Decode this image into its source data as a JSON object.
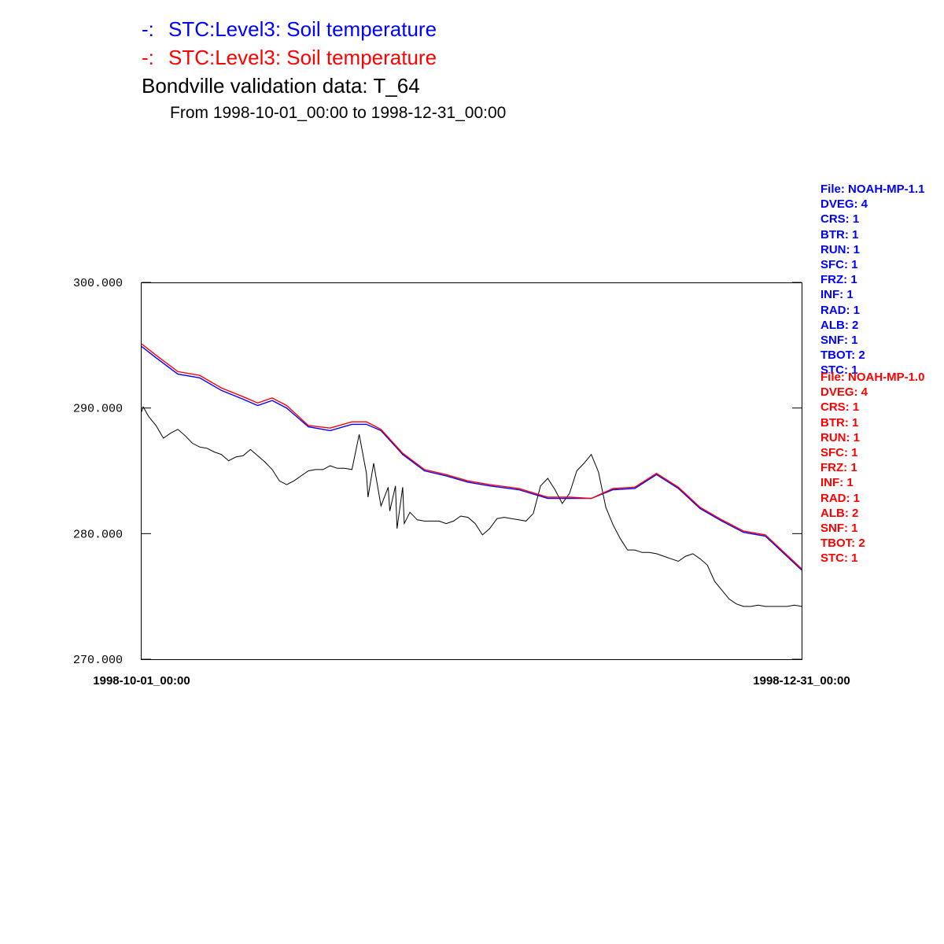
{
  "titles": {
    "series1_prefix": "-:",
    "series1": "STC:Level3: Soil temperature",
    "series2_prefix": "-:",
    "series2": "STC:Level3: Soil temperature",
    "validation": "Bondville validation data:  T_64",
    "range": "From 1998-10-01_00:00 to 1998-12-31_00:00"
  },
  "legends": {
    "blue": [
      "File: NOAH-MP-1.1",
      "DVEG: 4",
      "CRS: 1",
      "BTR: 1",
      "RUN: 1",
      "SFC: 1",
      "FRZ: 1",
      "INF: 1",
      "RAD: 1",
      "ALB: 2",
      "SNF: 1",
      "TBOT: 2",
      "STC: 1"
    ],
    "red": [
      "File: NOAH-MP-1.0",
      "DVEG: 4",
      "CRS: 1",
      "BTR: 1",
      "RUN: 1",
      "SFC: 1",
      "FRZ: 1",
      "INF: 1",
      "RAD: 1",
      "ALB: 2",
      "SNF: 1",
      "TBOT: 2",
      "STC: 1"
    ]
  },
  "colors": {
    "series1": "#0000ff",
    "series2": "#ff0000",
    "observed": "#000000"
  },
  "chart_data": {
    "type": "line",
    "ylim": [
      270,
      300
    ],
    "yticks": [
      "300.000",
      "290.000",
      "280.000",
      "270.000"
    ],
    "xticks": [
      "1998-10-01_00:00",
      "1998-12-31_00:00"
    ],
    "x_start": "1998-10-01_00:00",
    "x_end": "1998-12-31_00:00",
    "series": [
      {
        "name": "STC:Level3: Soil temperature (NOAH-MP-1.1)",
        "color": "#0000ff",
        "x": [
          "1998-10-01",
          "1998-10-03",
          "1998-10-06",
          "1998-10-09",
          "1998-10-12",
          "1998-10-15",
          "1998-10-17",
          "1998-10-19",
          "1998-10-21",
          "1998-10-24",
          "1998-10-27",
          "1998-10-30",
          "1998-11-01",
          "1998-11-03",
          "1998-11-06",
          "1998-11-09",
          "1998-11-12",
          "1998-11-15",
          "1998-11-18",
          "1998-11-22",
          "1998-11-26",
          "1998-11-29",
          "1998-12-02",
          "1998-12-05",
          "1998-12-08",
          "1998-12-11",
          "1998-12-14",
          "1998-12-17",
          "1998-12-20",
          "1998-12-23",
          "1998-12-26",
          "1998-12-31"
        ],
        "y": [
          294.9,
          294.0,
          292.7,
          292.4,
          291.4,
          290.7,
          290.2,
          290.6,
          290.0,
          288.5,
          288.2,
          288.7,
          288.7,
          288.2,
          286.3,
          285.0,
          284.6,
          284.1,
          283.8,
          283.5,
          282.8,
          282.8,
          282.8,
          283.5,
          283.6,
          284.7,
          283.6,
          282.0,
          281.0,
          280.1,
          279.8,
          277.1
        ]
      },
      {
        "name": "STC:Level3: Soil temperature (NOAH-MP-1.0)",
        "color": "#ff0000",
        "x": [
          "1998-10-01",
          "1998-10-03",
          "1998-10-06",
          "1998-10-09",
          "1998-10-12",
          "1998-10-15",
          "1998-10-17",
          "1998-10-19",
          "1998-10-21",
          "1998-10-24",
          "1998-10-27",
          "1998-10-30",
          "1998-11-01",
          "1998-11-03",
          "1998-11-06",
          "1998-11-09",
          "1998-11-12",
          "1998-11-15",
          "1998-11-18",
          "1998-11-22",
          "1998-11-26",
          "1998-11-29",
          "1998-12-02",
          "1998-12-05",
          "1998-12-08",
          "1998-12-11",
          "1998-12-14",
          "1998-12-17",
          "1998-12-20",
          "1998-12-23",
          "1998-12-26",
          "1998-12-31"
        ],
        "y": [
          295.1,
          294.2,
          292.9,
          292.6,
          291.6,
          290.9,
          290.4,
          290.8,
          290.2,
          288.6,
          288.4,
          288.9,
          288.9,
          288.3,
          286.4,
          285.1,
          284.7,
          284.2,
          283.9,
          283.6,
          282.9,
          282.9,
          282.8,
          283.6,
          283.7,
          284.8,
          283.7,
          282.1,
          281.1,
          280.2,
          279.9,
          277.2
        ]
      },
      {
        "name": "Bondville validation data: T_64",
        "color": "#000000",
        "x": [
          "1998-10-01",
          "1998-10-01",
          "1998-10-02",
          "1998-10-03",
          "1998-10-04",
          "1998-10-05",
          "1998-10-06",
          "1998-10-07",
          "1998-10-08",
          "1998-10-09",
          "1998-10-10",
          "1998-10-11",
          "1998-10-12",
          "1998-10-13",
          "1998-10-14",
          "1998-10-15",
          "1998-10-16",
          "1998-10-17",
          "1998-10-18",
          "1998-10-19",
          "1998-10-20",
          "1998-10-21",
          "1998-10-22",
          "1998-10-23",
          "1998-10-24",
          "1998-10-25",
          "1998-10-26",
          "1998-10-27",
          "1998-10-28",
          "1998-10-29",
          "1998-10-30",
          "1998-10-31",
          "1998-11-01",
          "1998-11-01",
          "1998-11-02",
          "1998-11-03",
          "1998-11-04",
          "1998-11-04",
          "1998-11-05",
          "1998-11-05",
          "1998-11-06",
          "1998-11-06",
          "1998-11-07",
          "1998-11-08",
          "1998-11-09",
          "1998-11-10",
          "1998-11-11",
          "1998-11-12",
          "1998-11-13",
          "1998-11-14",
          "1998-11-15",
          "1998-11-16",
          "1998-11-17",
          "1998-11-18",
          "1998-11-19",
          "1998-11-20",
          "1998-11-21",
          "1998-11-22",
          "1998-11-23",
          "1998-11-24",
          "1998-11-25",
          "1998-11-26",
          "1998-11-27",
          "1998-11-28",
          "1998-11-29",
          "1998-11-30",
          "1998-12-01",
          "1998-12-02",
          "1998-12-03",
          "1998-12-04",
          "1998-12-05",
          "1998-12-06",
          "1998-12-07",
          "1998-12-08",
          "1998-12-09",
          "1998-12-10",
          "1998-12-11",
          "1998-12-12",
          "1998-12-13",
          "1998-12-14",
          "1998-12-15",
          "1998-12-16",
          "1998-12-17",
          "1998-12-18",
          "1998-12-19",
          "1998-12-20",
          "1998-12-21",
          "1998-12-22",
          "1998-12-23",
          "1998-12-24",
          "1998-12-25",
          "1998-12-26",
          "1998-12-27",
          "1998-12-28",
          "1998-12-29",
          "1998-12-30",
          "1998-12-31"
        ],
        "y": [
          289.7,
          290.1,
          289.3,
          288.6,
          287.6,
          288.0,
          288.3,
          287.8,
          287.2,
          286.9,
          286.8,
          286.5,
          286.3,
          285.8,
          286.1,
          286.2,
          286.7,
          286.2,
          285.7,
          285.1,
          284.2,
          283.9,
          284.2,
          284.6,
          285.0,
          285.1,
          285.1,
          285.4,
          285.2,
          285.2,
          285.1,
          287.9,
          284.8,
          282.9,
          285.6,
          282.2,
          283.7,
          281.8,
          283.8,
          280.4,
          283.7,
          280.8,
          281.7,
          281.1,
          281.0,
          281.0,
          281.0,
          280.8,
          281.0,
          281.4,
          281.3,
          280.8,
          279.9,
          280.4,
          281.2,
          281.3,
          281.2,
          281.1,
          281.0,
          281.6,
          283.8,
          284.4,
          283.5,
          282.4,
          283.2,
          285.0,
          285.6,
          286.3,
          284.9,
          282.1,
          280.7,
          279.6,
          278.7,
          278.7,
          278.5,
          278.5,
          278.4,
          278.2,
          278.0,
          277.8,
          278.2,
          278.4,
          278.0,
          277.5,
          276.2,
          275.5,
          274.8,
          274.4,
          274.2,
          274.2,
          274.3,
          274.2,
          274.2,
          274.2,
          274.2,
          274.3,
          274.2
        ]
      }
    ]
  }
}
